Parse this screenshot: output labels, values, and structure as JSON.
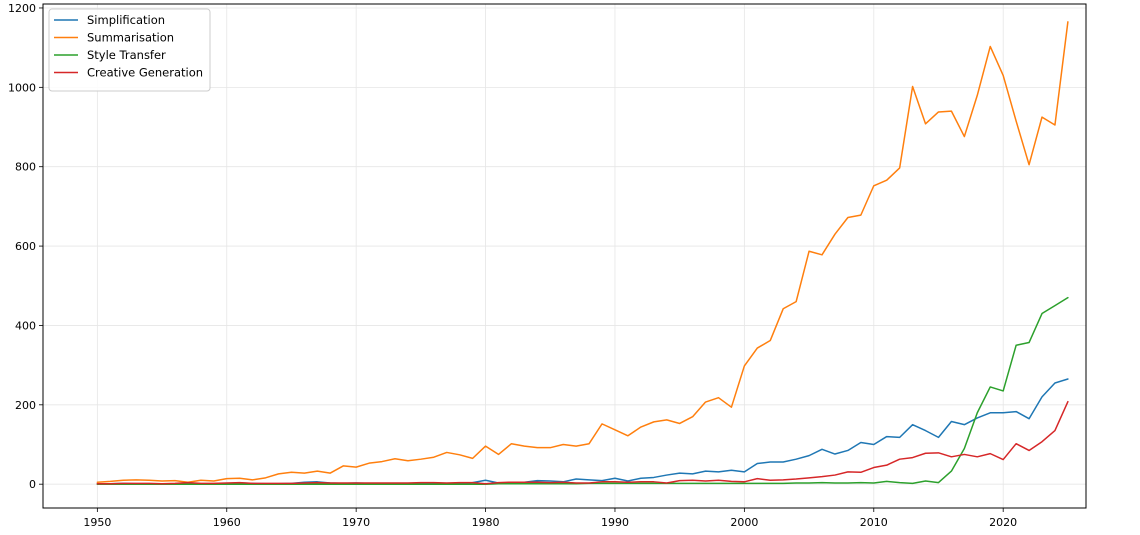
{
  "chart_data": {
    "type": "line",
    "title": "",
    "xlabel": "",
    "ylabel": "",
    "xlim": [
      1945.8,
      2026.4
    ],
    "ylim": [
      -60,
      1210
    ],
    "x_ticks": [
      1950,
      1960,
      1970,
      1980,
      1990,
      2000,
      2010,
      2020
    ],
    "y_ticks": [
      0,
      200,
      400,
      600,
      800,
      1000,
      1200
    ],
    "grid": true,
    "legend_position": "top-left",
    "x": [
      1950,
      1951,
      1952,
      1953,
      1954,
      1955,
      1956,
      1957,
      1958,
      1959,
      1960,
      1961,
      1962,
      1963,
      1964,
      1965,
      1966,
      1967,
      1968,
      1969,
      1970,
      1971,
      1972,
      1973,
      1974,
      1975,
      1976,
      1977,
      1978,
      1979,
      1980,
      1981,
      1982,
      1983,
      1984,
      1985,
      1986,
      1987,
      1988,
      1989,
      1990,
      1991,
      1992,
      1993,
      1994,
      1995,
      1996,
      1997,
      1998,
      1999,
      2000,
      2001,
      2002,
      2003,
      2004,
      2005,
      2006,
      2007,
      2008,
      2009,
      2010,
      2011,
      2012,
      2013,
      2014,
      2015,
      2016,
      2017,
      2018,
      2019,
      2020,
      2021,
      2022,
      2023,
      2024,
      2025
    ],
    "series": [
      {
        "name": "Simplification",
        "color": "#1f77b4",
        "values": [
          1,
          1,
          2,
          1,
          1,
          1,
          1,
          2,
          1,
          1,
          2,
          3,
          2,
          1,
          1,
          2,
          5,
          6,
          3,
          2,
          3,
          2,
          2,
          1,
          2,
          3,
          3,
          2,
          2,
          4,
          10,
          3,
          4,
          5,
          9,
          8,
          6,
          13,
          11,
          9,
          15,
          8,
          15,
          17,
          23,
          28,
          26,
          33,
          31,
          35,
          31,
          52,
          56,
          56,
          63,
          72,
          88,
          76,
          85,
          105,
          100,
          120,
          118,
          150,
          135,
          118,
          158,
          150,
          167,
          180,
          180,
          183,
          165,
          220,
          255,
          265
        ]
      },
      {
        "name": "Summarisation",
        "color": "#ff7f0e",
        "values": [
          5,
          7,
          10,
          11,
          10,
          8,
          9,
          5,
          10,
          8,
          14,
          15,
          11,
          16,
          26,
          30,
          28,
          33,
          28,
          46,
          43,
          53,
          57,
          64,
          59,
          63,
          68,
          80,
          74,
          65,
          96,
          75,
          102,
          96,
          92,
          92,
          100,
          96,
          102,
          152,
          137,
          122,
          144,
          157,
          162,
          153,
          170,
          207,
          218,
          194,
          298,
          343,
          362,
          442,
          460,
          587,
          578,
          630,
          672,
          678,
          752,
          766,
          797,
          1002,
          908,
          938,
          940,
          876,
          980,
          1103,
          1030,
          915,
          805,
          925,
          905,
          1165
        ]
      },
      {
        "name": "Style Transfer",
        "color": "#2ca02c",
        "values": [
          0,
          0,
          0,
          0,
          0,
          0,
          0,
          0,
          0,
          0,
          0,
          0,
          0,
          0,
          0,
          0,
          0,
          0,
          0,
          0,
          0,
          0,
          0,
          0,
          0,
          0,
          0,
          0,
          0,
          0,
          0,
          1,
          1,
          1,
          1,
          1,
          1,
          1,
          2,
          2,
          2,
          2,
          2,
          2,
          2,
          2,
          2,
          2,
          2,
          2,
          2,
          2,
          2,
          2,
          3,
          3,
          4,
          3,
          3,
          4,
          3,
          7,
          4,
          2,
          8,
          4,
          33,
          90,
          180,
          245,
          235,
          350,
          357,
          430,
          450,
          470
        ]
      },
      {
        "name": "Creative Generation",
        "color": "#d62728",
        "values": [
          1,
          1,
          2,
          2,
          2,
          1,
          2,
          4,
          2,
          2,
          3,
          4,
          2,
          2,
          2,
          2,
          3,
          4,
          3,
          3,
          3,
          3,
          3,
          3,
          3,
          4,
          4,
          3,
          4,
          4,
          1,
          4,
          5,
          5,
          5,
          4,
          5,
          3,
          3,
          6,
          6,
          5,
          6,
          6,
          3,
          9,
          10,
          8,
          10,
          7,
          6,
          14,
          10,
          11,
          13,
          16,
          19,
          23,
          31,
          30,
          42,
          48,
          63,
          67,
          78,
          79,
          69,
          75,
          69,
          77,
          62,
          102,
          85,
          107,
          135,
          208
        ]
      }
    ]
  }
}
